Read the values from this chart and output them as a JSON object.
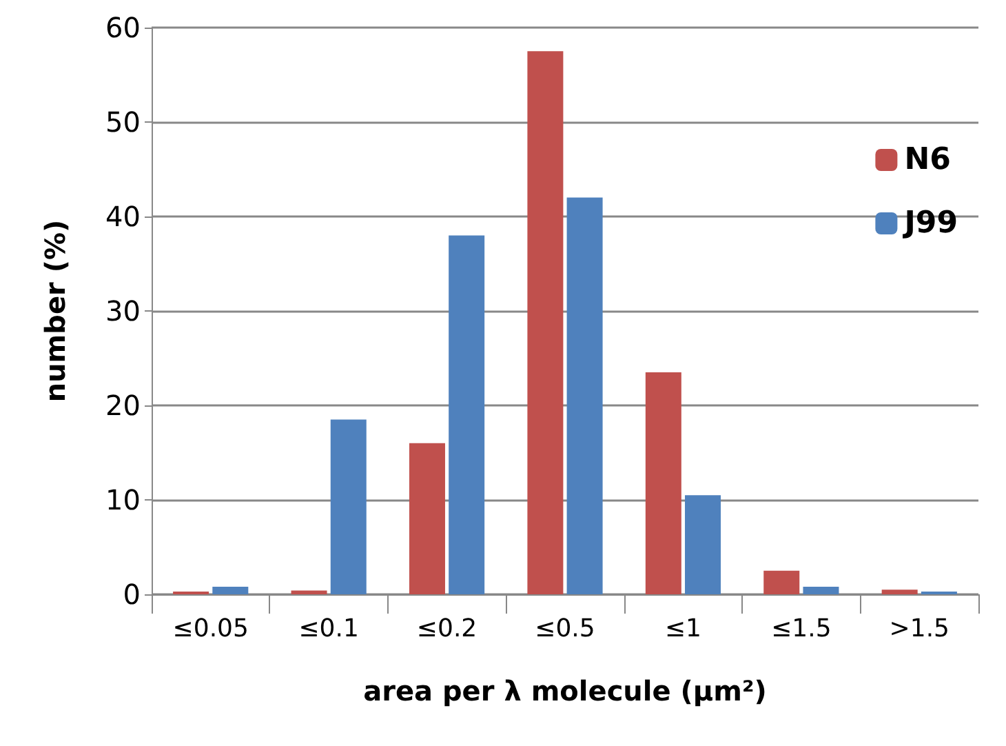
{
  "chart_data": {
    "type": "bar",
    "xlabel": "area per λ molecule (µm²)",
    "ylabel": "number (%)",
    "categories": [
      "≤0.05",
      "≤0.1",
      "≤0.2",
      "≤0.5",
      "≤1",
      "≤1.5",
      ">1.5"
    ],
    "series": [
      {
        "name": "N6",
        "color": "#c0504d",
        "values": [
          0.3,
          0.4,
          16,
          57.5,
          23.5,
          2.5,
          0.5
        ]
      },
      {
        "name": "J99",
        "color": "#4f81bd",
        "values": [
          0.8,
          18.5,
          38,
          42,
          10.5,
          0.8,
          0.3
        ]
      }
    ],
    "ylim": [
      0,
      60
    ],
    "yticks": [
      0,
      10,
      20,
      30,
      40,
      50,
      60
    ],
    "grid": "y",
    "legend": "top right"
  }
}
